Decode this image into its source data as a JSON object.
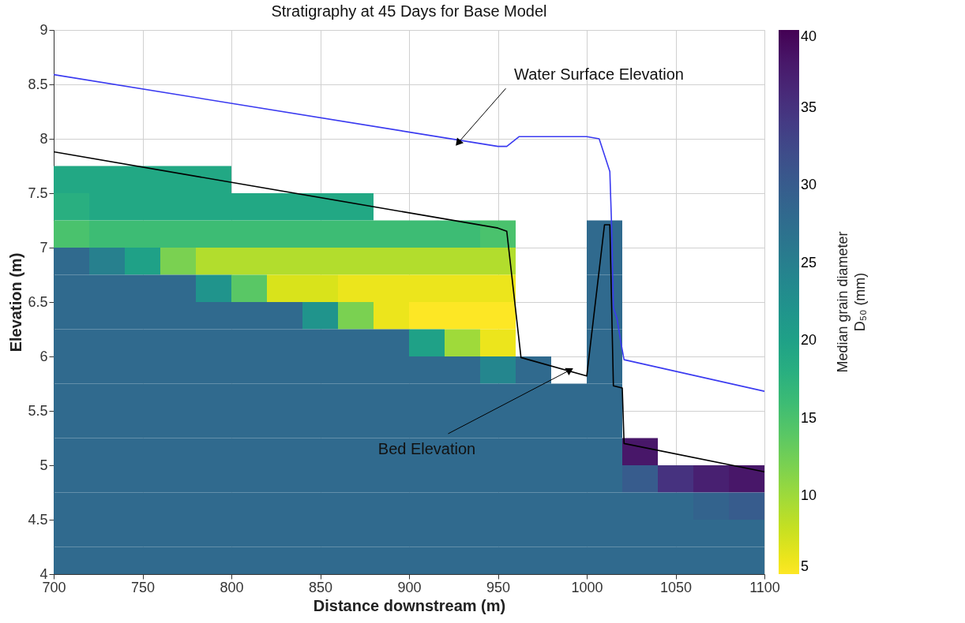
{
  "chart_data": {
    "type": "heatmap",
    "title": "Stratigraphy at 45 Days for Base Model",
    "xlabel": "Distance downstream (m)",
    "ylabel": "Elevation (m)",
    "clabel": "Median grain diameter\nD₅₀ (mm)",
    "x": [
      710,
      730,
      750,
      770,
      790,
      810,
      830,
      850,
      870,
      890,
      910,
      930,
      950,
      970,
      990,
      1010,
      1030,
      1050,
      1070,
      1090
    ],
    "y": [
      7.625,
      7.375,
      7.125,
      6.875,
      6.625,
      6.375,
      6.125,
      5.875,
      5.625,
      5.375,
      5.125,
      4.875,
      4.625,
      4.375,
      4.125
    ],
    "cells": [
      [
        19,
        19,
        19,
        19,
        19,
        null,
        null,
        null,
        null,
        null,
        null,
        null,
        null,
        null,
        null,
        null,
        null,
        null,
        null,
        null
      ],
      [
        18,
        19,
        19,
        19,
        19,
        19,
        19,
        19,
        19,
        null,
        null,
        null,
        null,
        null,
        null,
        null,
        null,
        null,
        null,
        null
      ],
      [
        15,
        16,
        16,
        16,
        16,
        16,
        16,
        16,
        16,
        16,
        16,
        16,
        15,
        null,
        null,
        28,
        null,
        null,
        null,
        null
      ],
      [
        28,
        25,
        20,
        12,
        9,
        9,
        9,
        9,
        9,
        9,
        9,
        9,
        9,
        null,
        null,
        28,
        null,
        null,
        null,
        null
      ],
      [
        28,
        28,
        28,
        28,
        22,
        14,
        7,
        7,
        6,
        6,
        6,
        6,
        6,
        null,
        null,
        28,
        null,
        null,
        null,
        null
      ],
      [
        28,
        28,
        28,
        28,
        28,
        28,
        28,
        22,
        12,
        6,
        5,
        5,
        5,
        null,
        null,
        28,
        null,
        null,
        null,
        null
      ],
      [
        28,
        28,
        28,
        28,
        28,
        28,
        28,
        28,
        28,
        28,
        20,
        10,
        6,
        null,
        null,
        28,
        null,
        null,
        null,
        null
      ],
      [
        28,
        28,
        28,
        28,
        28,
        28,
        28,
        28,
        28,
        28,
        28,
        28,
        24,
        28,
        null,
        28,
        null,
        null,
        null,
        null
      ],
      [
        28,
        28,
        28,
        28,
        28,
        28,
        28,
        28,
        28,
        28,
        28,
        28,
        28,
        28,
        28,
        28,
        null,
        null,
        null,
        null
      ],
      [
        28,
        28,
        28,
        28,
        28,
        28,
        28,
        28,
        28,
        28,
        28,
        28,
        28,
        28,
        28,
        28,
        null,
        null,
        null,
        null
      ],
      [
        28,
        28,
        28,
        28,
        28,
        28,
        28,
        28,
        28,
        28,
        28,
        28,
        28,
        28,
        28,
        28,
        38,
        null,
        null,
        null
      ],
      [
        28,
        28,
        28,
        28,
        28,
        28,
        28,
        28,
        28,
        28,
        28,
        28,
        28,
        28,
        28,
        28,
        30,
        35,
        37,
        38
      ],
      [
        28,
        28,
        28,
        28,
        28,
        28,
        28,
        28,
        28,
        28,
        28,
        28,
        28,
        28,
        28,
        28,
        28,
        28,
        29,
        30
      ],
      [
        28,
        28,
        28,
        28,
        28,
        28,
        28,
        28,
        28,
        28,
        28,
        28,
        28,
        28,
        28,
        28,
        28,
        28,
        28,
        28
      ],
      [
        28,
        28,
        28,
        28,
        28,
        28,
        28,
        28,
        28,
        28,
        28,
        28,
        28,
        28,
        28,
        28,
        28,
        28,
        28,
        28
      ]
    ],
    "clim": [
      5,
      40
    ],
    "cticks": [
      5,
      10,
      15,
      20,
      25,
      30,
      35,
      40
    ],
    "series": [
      {
        "type": "line",
        "color": "#3a3af0",
        "x": [
          700,
          950,
          955,
          962,
          1000,
          1007,
          1010,
          1013,
          1014,
          1015,
          1017,
          1019,
          1021,
          1100
        ],
        "values": [
          8.59,
          7.93,
          7.93,
          8.02,
          8.02,
          8.0,
          7.85,
          7.7,
          7.2,
          6.45,
          6.35,
          6.15,
          5.97,
          5.68
        ]
      },
      {
        "type": "line",
        "color": "#000000",
        "x": [
          700,
          950,
          955,
          963,
          1000,
          1010,
          1013,
          1015,
          1020,
          1021,
          1100
        ],
        "values": [
          7.88,
          7.18,
          7.15,
          5.99,
          5.82,
          7.21,
          7.21,
          5.73,
          5.71,
          5.2,
          4.94
        ]
      }
    ],
    "annotations": [
      {
        "text": "Water Surface Elevation",
        "x": 928,
        "y": 7.97
      },
      {
        "text": "Bed Elevation",
        "x": 990,
        "y": 5.87
      }
    ],
    "xlim": [
      700,
      1100
    ],
    "ylim": [
      4,
      9
    ],
    "xticks": [
      700,
      750,
      800,
      850,
      900,
      950,
      1000,
      1050,
      1100
    ],
    "yticks": [
      4,
      4.5,
      5,
      5.5,
      6,
      6.5,
      7,
      7.5,
      8,
      8.5,
      9
    ],
    "grid": true
  }
}
